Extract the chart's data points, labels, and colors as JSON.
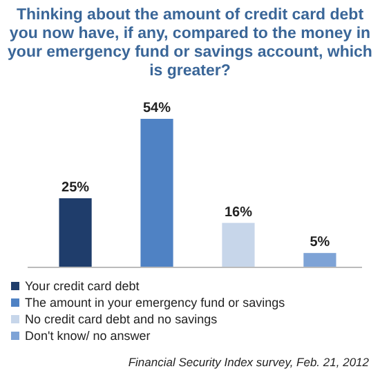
{
  "chart_data": {
    "type": "bar",
    "title": "Thinking about the amount of credit card debt you now have, if any, compared to the money in your emergency fund or savings account, which is greater?",
    "categories": [
      null,
      null,
      null,
      null
    ],
    "stacked": true,
    "series": [
      {
        "name": "Your credit card debt",
        "color": "#1f3d6b",
        "values": [
          25,
          null,
          null,
          null
        ],
        "value_labels": [
          "25%",
          null,
          null,
          null
        ]
      },
      {
        "name": "The amount in your emergency fund or savings",
        "color": "#4f82c4",
        "values": [
          null,
          54,
          null,
          null
        ],
        "value_labels": [
          null,
          "54%",
          null,
          null
        ]
      },
      {
        "name": "No credit card debt and no savings",
        "color": "#c7d6ea",
        "values": [
          null,
          null,
          16,
          null
        ],
        "value_labels": [
          null,
          null,
          "16%",
          null
        ]
      },
      {
        "name": "Don't know/ no answer",
        "color": "#7ea3d6",
        "values": [
          null,
          null,
          null,
          5
        ],
        "value_labels": [
          null,
          null,
          null,
          "5%"
        ]
      }
    ],
    "legend": "bottom",
    "annotations": [
      "Financial Security Index survey, Feb. 21, 2012"
    ]
  }
}
